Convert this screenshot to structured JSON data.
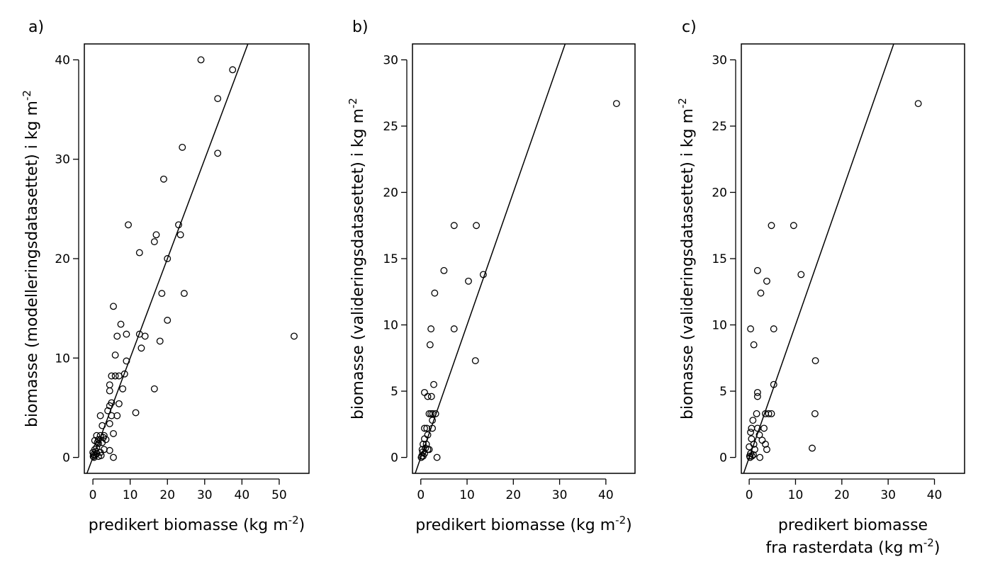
{
  "chart_data": [
    {
      "type": "scatter",
      "panel_label": "a)",
      "x_label": [
        [
          "predikert biomasse (kg m",
          "-2",
          ")"
        ]
      ],
      "y_label": [
        [
          "biomasse (modelleringsdatasettet) i kg m",
          "-2"
        ]
      ],
      "color": "#000000",
      "xlim": [
        -2.3,
        58
      ],
      "ylim": [
        -1.6,
        41.6
      ],
      "xticks": [
        0,
        10,
        20,
        30,
        40,
        50
      ],
      "yticks": [
        0,
        10,
        20,
        30,
        40
      ],
      "reference_line": {
        "slope": 1,
        "intercept": 0
      },
      "x": [
        29,
        37.5,
        33.5,
        33.5,
        24,
        19,
        9.5,
        17,
        16.5,
        12.5,
        23,
        23.5,
        20,
        18.5,
        24.5,
        54,
        5.5,
        7.5,
        6.5,
        9,
        12.5,
        14,
        20,
        18,
        13,
        9,
        6,
        5,
        6,
        7,
        8.5,
        16.5,
        8,
        4.5,
        4.5,
        7,
        5,
        4.5,
        4,
        5,
        6.5,
        11.5,
        2,
        4.5,
        2.5,
        3,
        5.5,
        1,
        2,
        1.5,
        0.5,
        1.5,
        2.5,
        1,
        0.5,
        3,
        4.5,
        2,
        1,
        0.2,
        0.5,
        0.1,
        1.5,
        0.3,
        5.5,
        2.2,
        0,
        0.8,
        3.5,
        1.2,
        2.8
      ],
      "y": [
        40,
        39,
        36.1,
        30.6,
        31.2,
        28,
        23.4,
        22.4,
        21.7,
        20.6,
        23.4,
        22.4,
        20,
        16.5,
        16.5,
        12.2,
        15.2,
        13.4,
        12.2,
        12.4,
        12.4,
        12.2,
        13.8,
        11.7,
        11,
        9.7,
        10.3,
        8.2,
        8.2,
        8.2,
        8.4,
        6.9,
        6.9,
        7.3,
        6.7,
        5.4,
        5.5,
        5.2,
        4.7,
        4.2,
        4.2,
        4.5,
        4.2,
        3.4,
        3.2,
        2.2,
        2.4,
        2.2,
        2.2,
        1.8,
        1.7,
        1.4,
        1.5,
        1,
        0.8,
        0.8,
        0.7,
        0.5,
        0.4,
        0.3,
        0.2,
        0.1,
        0.1,
        0,
        0,
        0.2,
        0.5,
        0.6,
        1.8,
        1.5,
        2.0
      ]
    },
    {
      "type": "scatter",
      "panel_label": "b)",
      "x_label": [
        [
          "predikert biomasse (kg m",
          "-2",
          ")"
        ]
      ],
      "y_label": [
        [
          "biomasse (valideringsdatasettet) i kg m",
          "-2"
        ]
      ],
      "color": "#000000",
      "xlim": [
        -1.8,
        46.3
      ],
      "ylim": [
        -1.2,
        31.2
      ],
      "xticks": [
        0,
        10,
        20,
        30,
        40
      ],
      "yticks": [
        0,
        5,
        10,
        15,
        20,
        25,
        30
      ],
      "reference_line": {
        "slope": 1,
        "intercept": 0
      },
      "x": [
        42.3,
        7.2,
        12,
        5,
        13.5,
        10.3,
        3,
        2.2,
        7.2,
        2,
        11.8,
        2.8,
        0.8,
        1.5,
        2.3,
        1.8,
        2.2,
        2.6,
        3.2,
        2.5,
        0.8,
        1.3,
        2.5,
        1.5,
        0.8,
        0.5,
        1.2,
        1.8,
        1.5,
        0.3,
        0.8,
        0.2,
        0.5,
        0.1,
        3.5,
        0.4,
        1
      ],
      "y": [
        26.7,
        17.5,
        17.5,
        14.1,
        13.8,
        13.3,
        12.4,
        9.7,
        9.7,
        8.5,
        7.3,
        5.5,
        4.9,
        4.6,
        4.6,
        3.3,
        3.3,
        3.3,
        3.3,
        2.8,
        2.2,
        2.2,
        2.2,
        1.7,
        1.4,
        1.0,
        1.0,
        0.6,
        0.6,
        0.6,
        0.3,
        0.1,
        0.1,
        0,
        0,
        0.4,
        0.7
      ]
    },
    {
      "type": "scatter",
      "panel_label": "c)",
      "x_label": [
        [
          "predikert biomasse"
        ],
        [
          "fra rasterdata (kg m",
          "-2",
          ")"
        ]
      ],
      "y_label": [
        [
          "biomasse (valideringsdatasettet) i kg m",
          "-2"
        ]
      ],
      "color": "#000000",
      "xlim": [
        -1.7,
        46.5
      ],
      "ylim": [
        -1.2,
        31.2
      ],
      "xticks": [
        0,
        10,
        20,
        30,
        40
      ],
      "yticks": [
        0,
        5,
        10,
        15,
        20,
        25,
        30
      ],
      "reference_line": {
        "slope": 1,
        "intercept": 0
      },
      "x": [
        36.5,
        4.8,
        9.6,
        1.8,
        11.2,
        3.8,
        2.5,
        0.3,
        5.3,
        1,
        14.3,
        5.3,
        1.8,
        1.8,
        1.6,
        3.5,
        4.2,
        4.8,
        14.2,
        0.8,
        0.5,
        1.8,
        3.2,
        0.3,
        2.2,
        0.5,
        2.8,
        1,
        3.5,
        0,
        3.8,
        13.6,
        1.2,
        0.3,
        0.1,
        0.6,
        2.3,
        0.2,
        0.9
      ],
      "y": [
        26.7,
        17.5,
        17.5,
        14.1,
        13.8,
        13.3,
        12.4,
        9.7,
        9.7,
        8.5,
        7.3,
        5.5,
        4.9,
        4.6,
        3.3,
        3.3,
        3.3,
        3.3,
        3.3,
        2.8,
        2.2,
        2.2,
        2.2,
        1.9,
        1.7,
        1.4,
        1.3,
        1.0,
        1.0,
        0.8,
        0.6,
        0.7,
        0.6,
        0.3,
        0.1,
        0.1,
        0,
        0,
        0.2
      ]
    }
  ]
}
